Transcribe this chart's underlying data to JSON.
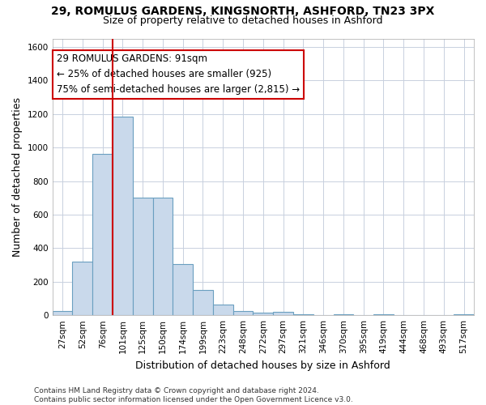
{
  "title": "29, ROMULUS GARDENS, KINGSNORTH, ASHFORD, TN23 3PX",
  "subtitle": "Size of property relative to detached houses in Ashford",
  "xlabel": "Distribution of detached houses by size in Ashford",
  "ylabel": "Number of detached properties",
  "bar_color": "#c9d9eb",
  "bar_edge_color": "#6a9fc0",
  "categories": [
    "27sqm",
    "52sqm",
    "76sqm",
    "101sqm",
    "125sqm",
    "150sqm",
    "174sqm",
    "199sqm",
    "223sqm",
    "248sqm",
    "272sqm",
    "297sqm",
    "321sqm",
    "346sqm",
    "370sqm",
    "395sqm",
    "419sqm",
    "444sqm",
    "468sqm",
    "493sqm",
    "517sqm"
  ],
  "values": [
    25,
    320,
    960,
    1185,
    700,
    700,
    305,
    150,
    65,
    25,
    15,
    20,
    5,
    0,
    5,
    0,
    5,
    0,
    0,
    0,
    5
  ],
  "ylim": [
    0,
    1650
  ],
  "yticks": [
    0,
    200,
    400,
    600,
    800,
    1000,
    1200,
    1400,
    1600
  ],
  "vline_pos": 2.5,
  "vline_color": "#cc0000",
  "annotation_text": "29 ROMULUS GARDENS: 91sqm\n← 25% of detached houses are smaller (925)\n75% of semi-detached houses are larger (2,815) →",
  "annotation_box_color": "#ffffff",
  "annotation_box_edge": "#cc0000",
  "footnote": "Contains HM Land Registry data © Crown copyright and database right 2024.\nContains public sector information licensed under the Open Government Licence v3.0.",
  "bg_color": "#ffffff",
  "grid_color": "#c8d0de",
  "title_fontsize": 10,
  "subtitle_fontsize": 9,
  "axis_label_fontsize": 9,
  "tick_fontsize": 7.5,
  "annotation_fontsize": 8.5,
  "footnote_fontsize": 6.5
}
